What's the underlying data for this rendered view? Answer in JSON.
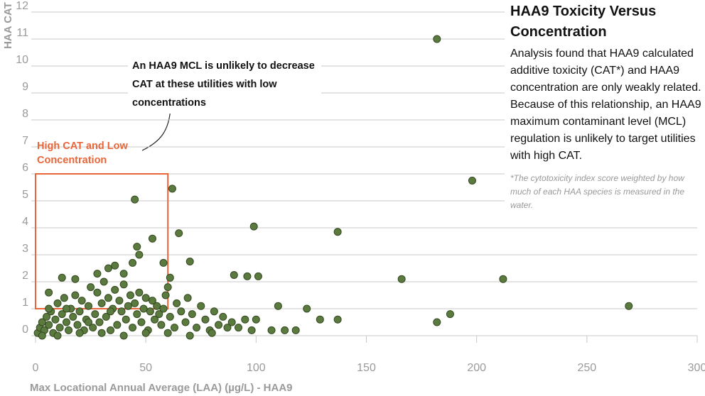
{
  "chart_data": {
    "type": "scatter",
    "title": "HAA9 Toxicity Versus Concentration",
    "subtitle": "Analysis found that HAA9 calculated additive toxicity (CAT*) and HAA9 concentration are only weakly related. Because of this relationship, an HAA9 maximum contaminant level (MCL) regulation is unlikely to target utilities with high CAT.",
    "footnote": "*The cytotoxicity index score weighted by how much of each HAA species is measured in the water.",
    "x_label": "Max Locational Annual Average (LAA) (µg/L) - HAA9",
    "y_label": "HAA CAT",
    "annotations": [
      "An HAA9 MCL is unlikely to decrease CAT at these utilities with low concentrations",
      "High CAT and Low Concentration"
    ],
    "highlight": {
      "xlim": [
        0,
        60
      ],
      "ylim": [
        1,
        6
      ],
      "color": "#e8663a"
    },
    "color": "#5b7a3f",
    "xlim": [
      0,
      300
    ],
    "xticks": [
      0,
      50,
      100,
      150,
      200,
      250,
      300
    ],
    "ylim": [
      0,
      12
    ],
    "yticks": [
      0,
      1,
      2,
      3,
      4,
      5,
      6,
      7,
      8,
      9,
      10,
      11,
      12
    ],
    "grid": true,
    "x": [
      1,
      2,
      3,
      4,
      5,
      6,
      7,
      8,
      9,
      10,
      11,
      12,
      13,
      14,
      15,
      16,
      17,
      18,
      19,
      20,
      21,
      22,
      23,
      24,
      25,
      26,
      27,
      28,
      29,
      30,
      31,
      32,
      33,
      34,
      35,
      36,
      37,
      38,
      39,
      40,
      41,
      42,
      43,
      44,
      45,
      46,
      47,
      48,
      49,
      50,
      51,
      52,
      53,
      54,
      55,
      57,
      58,
      59,
      61,
      63,
      64,
      66,
      68,
      69,
      71,
      73,
      75,
      77,
      79,
      81,
      83,
      85,
      87,
      89,
      92,
      95,
      98,
      3,
      10,
      20,
      30,
      40,
      50,
      60,
      70,
      80,
      6,
      14,
      24,
      34,
      56,
      182,
      198,
      45,
      62,
      99,
      137,
      65,
      53,
      46,
      47,
      166,
      212,
      269,
      188,
      182,
      129,
      137,
      123,
      110,
      100,
      118,
      113,
      107,
      90,
      96,
      101,
      70,
      61,
      60,
      58,
      44,
      40,
      36,
      33,
      28,
      12,
      6,
      18
    ],
    "values": [
      0.1,
      0.3,
      0.5,
      0.2,
      0.7,
      0.4,
      0.9,
      0.1,
      0.6,
      1.2,
      0.3,
      0.8,
      1.4,
      0.5,
      0.2,
      1.0,
      0.7,
      1.5,
      0.4,
      0.9,
      1.3,
      0.2,
      0.6,
      1.1,
      1.8,
      0.3,
      0.8,
      1.6,
      0.5,
      1.2,
      2.0,
      0.7,
      1.4,
      0.2,
      1.0,
      1.7,
      0.4,
      1.3,
      0.9,
      1.9,
      0.6,
      1.1,
      1.5,
      0.3,
      1.2,
      0.8,
      1.6,
      0.5,
      1.0,
      1.4,
      0.2,
      0.9,
      1.3,
      0.6,
      1.1,
      0.4,
      1.0,
      1.5,
      0.7,
      0.3,
      1.2,
      0.9,
      0.5,
      1.4,
      0.8,
      0.3,
      1.1,
      0.6,
      0.2,
      0.9,
      0.4,
      0.7,
      0.3,
      0.5,
      0.3,
      0.6,
      0.2,
      0.0,
      0.0,
      0.1,
      0.1,
      0.0,
      0.1,
      0.1,
      0.0,
      0.1,
      1.0,
      1.0,
      0.5,
      0.9,
      0.8,
      11,
      5.75,
      5.05,
      5.45,
      4.05,
      3.85,
      3.8,
      3.6,
      3.3,
      3.0,
      2.1,
      2.1,
      1.1,
      0.8,
      0.5,
      0.6,
      0.6,
      1.0,
      1.1,
      0.6,
      0.2,
      0.2,
      0.2,
      2.25,
      2.2,
      2.2,
      2.75,
      2.15,
      1.8,
      2.7,
      2.7,
      2.3,
      2.6,
      2.5,
      2.3,
      2.15,
      1.6,
      2.1
    ]
  }
}
